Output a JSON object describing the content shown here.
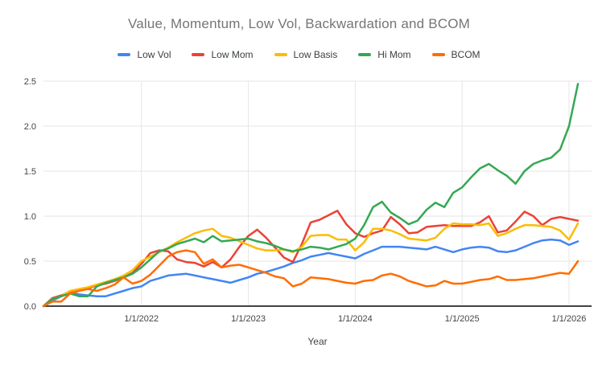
{
  "chart_data": {
    "type": "line",
    "title": "Value, Momentum, Low Vol, Backwardation and BCOM",
    "xlabel": "Year",
    "ylim": [
      0,
      2.5
    ],
    "grid": true,
    "legend_position": "top",
    "y_ticks": [
      "0.0",
      "0.5",
      "1.0",
      "1.5",
      "2.0",
      "2.5"
    ],
    "x_ticks": [
      {
        "label": "1/1/2022",
        "i": 11
      },
      {
        "label": "1/1/2023",
        "i": 23
      },
      {
        "label": "1/1/2024",
        "i": 35
      },
      {
        "label": "1/1/2025",
        "i": 47
      },
      {
        "label": "1/1/2026",
        "i": 59
      }
    ],
    "x_months": [
      "2021-01",
      "2021-02",
      "2021-03",
      "2021-04",
      "2021-05",
      "2021-06",
      "2021-07",
      "2021-08",
      "2021-09",
      "2021-10",
      "2021-11",
      "2021-12",
      "2022-01",
      "2022-02",
      "2022-03",
      "2022-04",
      "2022-05",
      "2022-06",
      "2022-07",
      "2022-08",
      "2022-09",
      "2022-10",
      "2022-11",
      "2022-12",
      "2023-01",
      "2023-02",
      "2023-03",
      "2023-04",
      "2023-05",
      "2023-06",
      "2023-07",
      "2023-08",
      "2023-09",
      "2023-10",
      "2023-11",
      "2023-12",
      "2024-01",
      "2024-02",
      "2024-03",
      "2024-04",
      "2024-05",
      "2024-06",
      "2024-07",
      "2024-08",
      "2024-09",
      "2024-10",
      "2024-11",
      "2024-12",
      "2025-01",
      "2025-02",
      "2025-03",
      "2025-04",
      "2025-05",
      "2025-06",
      "2025-07",
      "2025-08",
      "2025-09",
      "2025-10",
      "2025-11",
      "2025-12",
      "2026-01"
    ],
    "series": [
      {
        "name": "Low Vol",
        "color": "#4285F4",
        "values": [
          0.0,
          0.06,
          0.11,
          0.15,
          0.13,
          0.12,
          0.11,
          0.11,
          0.14,
          0.17,
          0.2,
          0.22,
          0.28,
          0.31,
          0.34,
          0.35,
          0.36,
          0.34,
          0.32,
          0.3,
          0.28,
          0.26,
          0.29,
          0.32,
          0.36,
          0.38,
          0.41,
          0.44,
          0.48,
          0.51,
          0.55,
          0.57,
          0.59,
          0.57,
          0.55,
          0.53,
          0.58,
          0.62,
          0.66,
          0.66,
          0.66,
          0.65,
          0.64,
          0.63,
          0.66,
          0.63,
          0.6,
          0.63,
          0.65,
          0.66,
          0.65,
          0.61,
          0.6,
          0.62,
          0.66,
          0.7,
          0.73,
          0.74,
          0.73,
          0.68,
          0.72
        ]
      },
      {
        "name": "Low Mom",
        "color": "#EA4335",
        "values": [
          0.0,
          0.09,
          0.12,
          0.16,
          0.18,
          0.2,
          0.23,
          0.25,
          0.28,
          0.32,
          0.37,
          0.47,
          0.59,
          0.62,
          0.61,
          0.52,
          0.49,
          0.48,
          0.44,
          0.49,
          0.43,
          0.52,
          0.66,
          0.78,
          0.85,
          0.76,
          0.65,
          0.54,
          0.49,
          0.69,
          0.93,
          0.96,
          1.01,
          1.06,
          0.91,
          0.81,
          0.77,
          0.81,
          0.84,
          0.99,
          0.91,
          0.81,
          0.82,
          0.88,
          0.89,
          0.9,
          0.89,
          0.89,
          0.89,
          0.93,
          1.0,
          0.82,
          0.84,
          0.94,
          1.05,
          1.0,
          0.9,
          0.97,
          0.99,
          0.97,
          0.95
        ]
      },
      {
        "name": "Low Basis",
        "color": "#FBBC04",
        "values": [
          0.0,
          0.08,
          0.11,
          0.17,
          0.19,
          0.21,
          0.24,
          0.27,
          0.3,
          0.34,
          0.4,
          0.5,
          0.55,
          0.6,
          0.65,
          0.71,
          0.76,
          0.81,
          0.84,
          0.86,
          0.78,
          0.76,
          0.72,
          0.68,
          0.64,
          0.62,
          0.62,
          0.63,
          0.6,
          0.66,
          0.78,
          0.79,
          0.79,
          0.74,
          0.74,
          0.62,
          0.71,
          0.86,
          0.86,
          0.84,
          0.8,
          0.75,
          0.74,
          0.73,
          0.76,
          0.86,
          0.92,
          0.91,
          0.91,
          0.9,
          0.92,
          0.78,
          0.81,
          0.86,
          0.9,
          0.9,
          0.89,
          0.88,
          0.84,
          0.74,
          0.92
        ]
      },
      {
        "name": "Hi Mom",
        "color": "#34A853",
        "values": [
          0.0,
          0.08,
          0.11,
          0.14,
          0.11,
          0.11,
          0.22,
          0.26,
          0.29,
          0.32,
          0.36,
          0.43,
          0.52,
          0.61,
          0.64,
          0.69,
          0.72,
          0.75,
          0.71,
          0.78,
          0.72,
          0.73,
          0.74,
          0.75,
          0.72,
          0.7,
          0.67,
          0.63,
          0.61,
          0.63,
          0.66,
          0.65,
          0.63,
          0.66,
          0.69,
          0.75,
          0.9,
          1.1,
          1.16,
          1.04,
          0.98,
          0.91,
          0.95,
          1.07,
          1.15,
          1.1,
          1.26,
          1.32,
          1.43,
          1.53,
          1.58,
          1.51,
          1.45,
          1.36,
          1.5,
          1.58,
          1.62,
          1.65,
          1.74,
          2.0,
          2.47
        ]
      },
      {
        "name": "BCOM",
        "color": "#FF6D01",
        "values": [
          0.0,
          0.05,
          0.05,
          0.14,
          0.17,
          0.19,
          0.17,
          0.2,
          0.24,
          0.32,
          0.25,
          0.28,
          0.35,
          0.45,
          0.55,
          0.6,
          0.62,
          0.6,
          0.47,
          0.52,
          0.43,
          0.45,
          0.46,
          0.43,
          0.4,
          0.37,
          0.33,
          0.31,
          0.22,
          0.25,
          0.32,
          0.31,
          0.3,
          0.28,
          0.26,
          0.25,
          0.28,
          0.29,
          0.34,
          0.36,
          0.33,
          0.28,
          0.25,
          0.22,
          0.23,
          0.28,
          0.25,
          0.25,
          0.27,
          0.29,
          0.3,
          0.33,
          0.29,
          0.29,
          0.3,
          0.31,
          0.33,
          0.35,
          0.37,
          0.36,
          0.5
        ]
      }
    ],
    "colors": {
      "grid": "#e6e6e6",
      "axis_line": "#424242",
      "title_text": "#757575",
      "legend_text": "#3c4043",
      "tick_text": "#444444"
    }
  }
}
